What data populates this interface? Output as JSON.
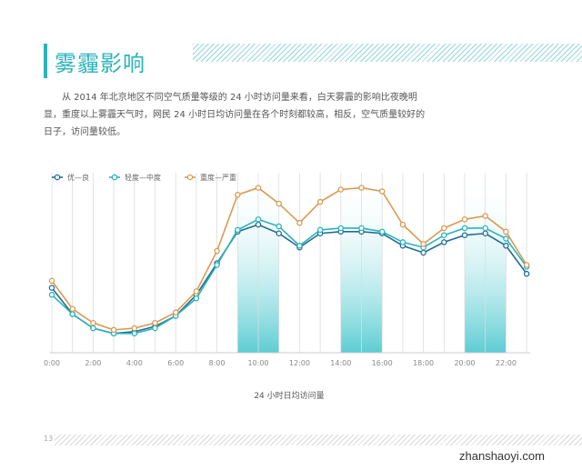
{
  "page": {
    "title": "雾霾影响",
    "paragraph": "从 2014 年北京地区不同空气质量等级的 24 小时访问量来看，白天雾霾的影响比夜晚明显，重度以上雾霾天气时，网民 24 小时日均访问量在各个时刻都较高，相反，空气质量较好的日子，访问量较低。",
    "page_number": "13",
    "watermark": "zhanshaoyi.com"
  },
  "colors": {
    "accent": "#2bb3bd",
    "series_good": "#1f6e96",
    "series_mild": "#2bb3bd",
    "series_severe": "#d99a52",
    "highlight": "#5ccdd3",
    "grid": "#dddddd"
  },
  "chart_data": {
    "type": "line",
    "title": "",
    "xlabel": "24 小时日均访问量",
    "ylabel": "",
    "grid": true,
    "legend_placement": "top-left",
    "x": [
      0,
      1,
      2,
      3,
      4,
      5,
      6,
      7,
      8,
      9,
      10,
      11,
      12,
      13,
      14,
      15,
      16,
      17,
      18,
      19,
      20,
      21,
      22,
      23
    ],
    "x_ticks": [
      "0:00",
      "2:00",
      "4:00",
      "6:00",
      "8:00",
      "10:00",
      "12:00",
      "14:00",
      "16:00",
      "18:00",
      "20:00",
      "22:00"
    ],
    "x_tick_values": [
      0,
      2,
      4,
      6,
      8,
      10,
      12,
      14,
      16,
      18,
      20,
      22
    ],
    "ylim": [
      0,
      100
    ],
    "highlight_ranges": [
      [
        9,
        11
      ],
      [
        14,
        16
      ],
      [
        20,
        22
      ]
    ],
    "series": [
      {
        "name": "优—良",
        "color_key": "series_good",
        "values": [
          37,
          22,
          14,
          11,
          12,
          15,
          21,
          33,
          51,
          69,
          73,
          68,
          60,
          68,
          69,
          69,
          68,
          61,
          57,
          63,
          67,
          68,
          61,
          45
        ]
      },
      {
        "name": "轻度—中度",
        "color_key": "series_mild",
        "values": [
          33,
          22,
          14,
          11,
          11,
          14,
          21,
          31,
          50,
          70,
          76,
          72,
          61,
          70,
          71,
          71,
          69,
          63,
          60,
          67,
          71,
          71,
          65,
          49
        ]
      },
      {
        "name": "重度—严重",
        "color_key": "series_severe",
        "values": [
          41,
          25,
          17,
          13,
          14,
          17,
          23,
          35,
          58,
          90,
          94,
          85,
          74,
          86,
          93,
          94,
          92,
          73,
          62,
          71,
          76,
          78,
          69,
          50
        ]
      }
    ]
  }
}
